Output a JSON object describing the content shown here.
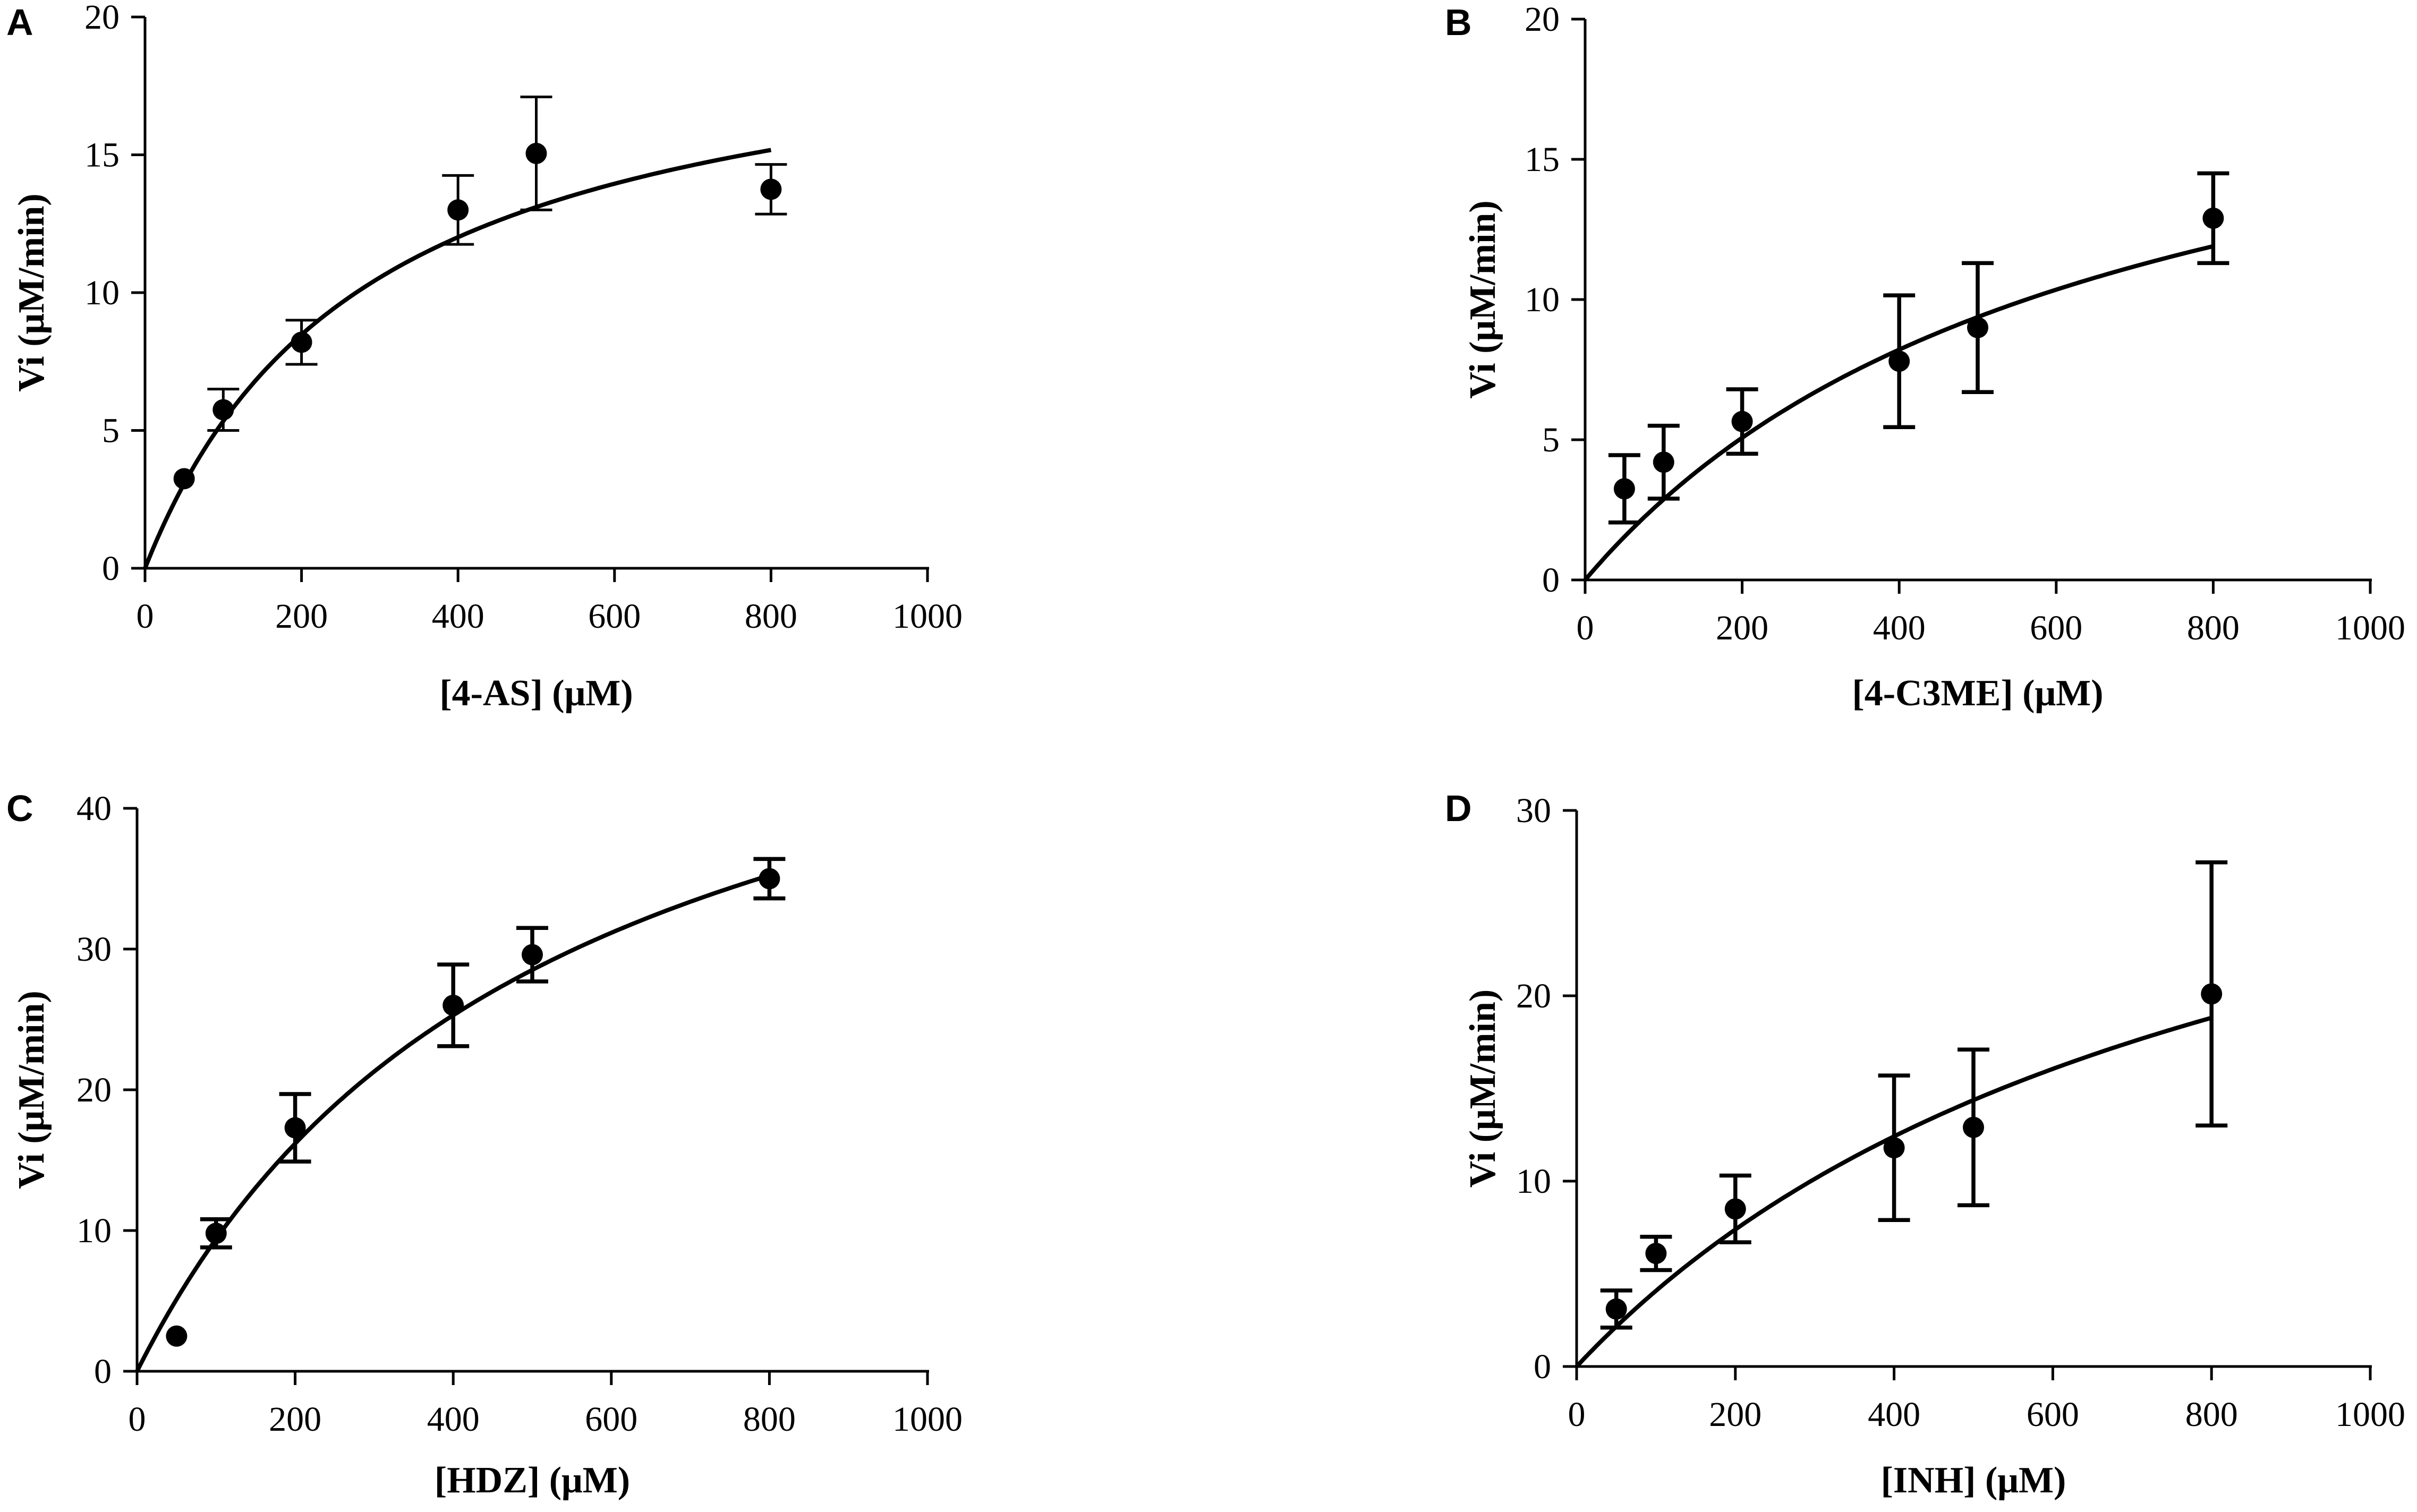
{
  "chart_data": [
    {
      "panel": "A",
      "type": "scatter",
      "xlabel": "[4-AS] (μM)",
      "ylabel": "Vi (μM/min)",
      "xlim": [
        0,
        1000
      ],
      "ylim": [
        0,
        20
      ],
      "xticks": [
        0,
        200,
        400,
        600,
        800,
        1000
      ],
      "yticks": [
        0,
        5,
        10,
        15,
        20
      ],
      "series": [
        {
          "name": "observed",
          "x": [
            50,
            100,
            200,
            400,
            500,
            800
          ],
          "y": [
            3.25,
            5.75,
            8.2,
            13.0,
            15.05,
            13.75
          ],
          "err": [
            0.0,
            0.75,
            0.8,
            1.25,
            2.05,
            0.9
          ]
        }
      ],
      "fit": {
        "model": "michaelis-menten",
        "vmax": 20.6,
        "km": 286,
        "x_end": 800
      }
    },
    {
      "panel": "B",
      "type": "scatter",
      "xlabel": "[4-C3ME] (μM)",
      "ylabel": "Vi (μM/min)",
      "xlim": [
        0,
        1000
      ],
      "ylim": [
        0,
        20
      ],
      "xticks": [
        0,
        200,
        400,
        600,
        800,
        1000
      ],
      "yticks": [
        0,
        5,
        10,
        15,
        20
      ],
      "series": [
        {
          "name": "observed",
          "x": [
            50,
            100,
            200,
            400,
            500,
            800
          ],
          "y": [
            3.25,
            4.2,
            5.65,
            7.8,
            9.0,
            12.9
          ],
          "err": [
            1.2,
            1.3,
            1.15,
            2.35,
            2.3,
            1.6
          ]
        }
      ],
      "fit": {
        "model": "michaelis-menten",
        "vmax": 21.6,
        "km": 652,
        "x_end": 800
      }
    },
    {
      "panel": "C",
      "type": "scatter",
      "xlabel": "[HDZ] (μM)",
      "ylabel": "Vi (μM/min)",
      "xlim": [
        0,
        1000
      ],
      "ylim": [
        0,
        40
      ],
      "xticks": [
        0,
        200,
        400,
        600,
        800,
        1000
      ],
      "yticks": [
        0,
        10,
        20,
        30,
        40
      ],
      "series": [
        {
          "name": "observed",
          "x": [
            50,
            100,
            200,
            400,
            500,
            800
          ],
          "y": [
            2.5,
            9.8,
            17.3,
            26.0,
            29.6,
            35.0
          ],
          "err": [
            0.0,
            1.0,
            2.4,
            2.9,
            1.9,
            1.4
          ]
        }
      ],
      "fit": {
        "model": "michaelis-menten",
        "vmax": 58.0,
        "km": 517,
        "x_end": 800
      }
    },
    {
      "panel": "D",
      "type": "scatter",
      "xlabel": "[INH] (μM)",
      "ylabel": "Vi (μM/min)",
      "xlim": [
        0,
        1000
      ],
      "ylim": [
        0,
        30
      ],
      "xticks": [
        0,
        200,
        400,
        600,
        800,
        1000
      ],
      "yticks": [
        0,
        10,
        20,
        30
      ],
      "series": [
        {
          "name": "observed",
          "x": [
            50,
            100,
            200,
            400,
            500,
            800
          ],
          "y": [
            3.1,
            6.1,
            8.5,
            11.8,
            12.9,
            20.1
          ],
          "err": [
            1.0,
            0.9,
            1.8,
            3.9,
            4.2,
            7.1
          ]
        }
      ],
      "fit": {
        "model": "michaelis-menten",
        "vmax": 38.8,
        "km": 850,
        "x_end": 800
      }
    }
  ]
}
